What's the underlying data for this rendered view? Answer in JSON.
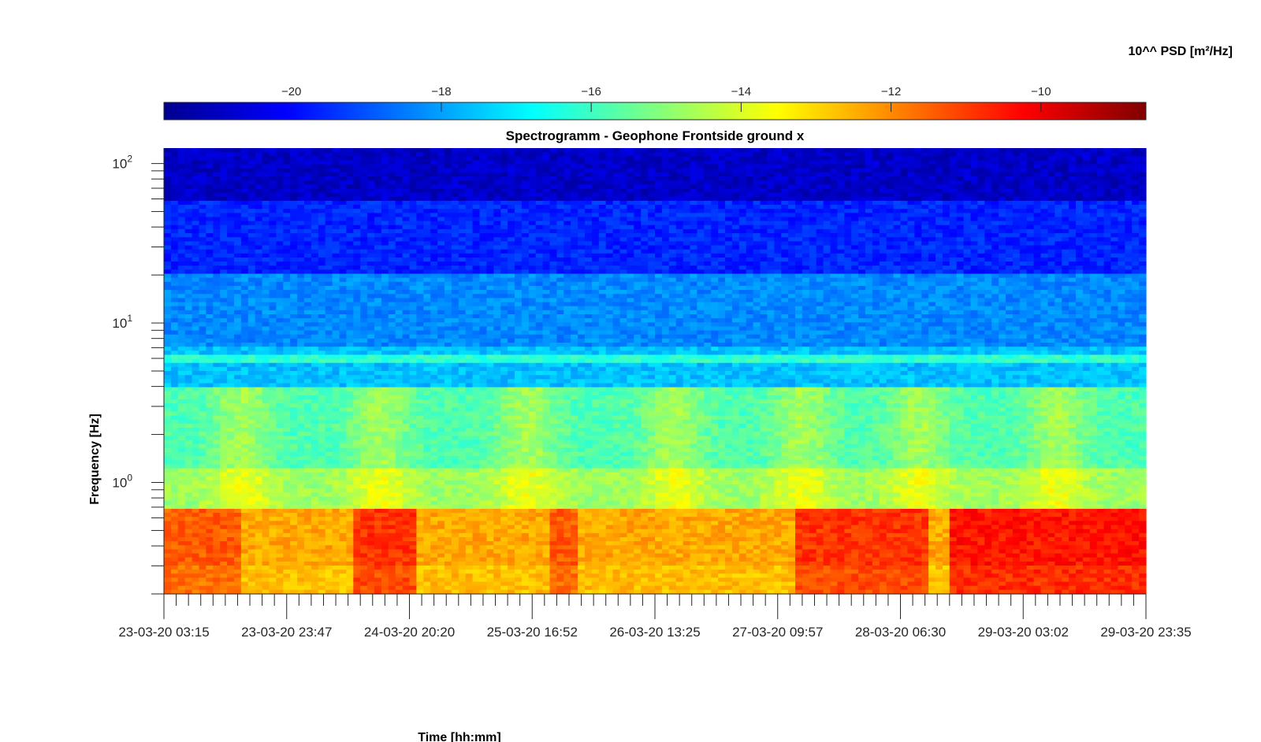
{
  "chart_data": {
    "type": "heatmap",
    "title": "Spectrogramm - Geophone Frontside ground x",
    "xlabel": "Time [hh:mm]",
    "ylabel": "Frequency [Hz]",
    "yscale": "log",
    "ylim": [
      0.2,
      125
    ],
    "y_ticks": [
      {
        "value": 1,
        "base": "10",
        "exp": "0"
      },
      {
        "value": 10,
        "base": "10",
        "exp": "1"
      },
      {
        "value": 100,
        "base": "10",
        "exp": "2"
      }
    ],
    "x_tick_labels": [
      "23-03-20 03:15",
      "23-03-20 23:47",
      "24-03-20 20:20",
      "25-03-20 16:52",
      "26-03-20 13:25",
      "27-03-20 09:57",
      "28-03-20 06:30",
      "29-03-20 03:02",
      "29-03-20 23:35"
    ],
    "minor_ticks_per_major": 9,
    "colorbar": {
      "label": "10^^ PSD [m²/Hz]",
      "range": [
        -21.7,
        -8.6
      ],
      "ticks": [
        -20,
        -18,
        -16,
        -14,
        -12,
        -10
      ],
      "colormap": "jet"
    },
    "bands": [
      {
        "f_from": 60,
        "f_to": 125,
        "log_psd": -20.8
      },
      {
        "f_from": 20,
        "f_to": 60,
        "log_psd": -19.6
      },
      {
        "f_from": 7,
        "f_to": 20,
        "log_psd": -18.3
      },
      {
        "f_from": 5.6,
        "f_to": 6.4,
        "log_psd": -16.2
      },
      {
        "f_from": 4,
        "f_to": 7,
        "log_psd": -17.6
      },
      {
        "f_from": 1.2,
        "f_to": 4,
        "log_psd": -15.6
      },
      {
        "f_from": 0.7,
        "f_to": 1.2,
        "log_psd": -14.6
      },
      {
        "f_from": 0.2,
        "f_to": 0.7,
        "log_psd": -12.4
      }
    ],
    "day_bursts": [
      0.08,
      0.22,
      0.37,
      0.52,
      0.65,
      0.77,
      0.91
    ],
    "low_freq_strong_periods": [
      {
        "t_from": 0.0,
        "t_to": 0.08,
        "log_psd": -11.4
      },
      {
        "t_from": 0.19,
        "t_to": 0.26,
        "log_psd": -10.9
      },
      {
        "t_from": 0.39,
        "t_to": 0.42,
        "log_psd": -11.4
      },
      {
        "t_from": 0.64,
        "t_to": 0.78,
        "log_psd": -10.9
      },
      {
        "t_from": 0.8,
        "t_to": 1.0,
        "log_psd": -10.5
      }
    ]
  }
}
